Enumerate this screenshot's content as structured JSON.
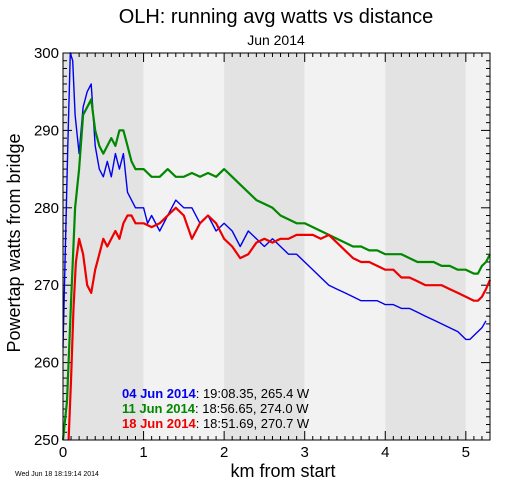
{
  "chart_data": {
    "type": "line",
    "title": "OLH: running avg watts vs distance",
    "subtitle": "Jun 2014",
    "xlabel": "km from start",
    "ylabel": "Powertap watts from bridge",
    "xlim": [
      0,
      5.3
    ],
    "ylim": [
      250,
      300
    ],
    "x_ticks": [
      "0",
      "1",
      "2",
      "3",
      "4",
      "5"
    ],
    "y_ticks": [
      "250",
      "260",
      "270",
      "280",
      "290",
      "300"
    ],
    "background_bands": "alternating grey bands, one per km",
    "stamp": "Wed Jun 18 18:19:14 2014",
    "legend_position": "bottom-left",
    "series": [
      {
        "name": "04 Jun 2014",
        "summary": ": 19:08.35, 265.4 W",
        "color": "#0000ee",
        "points": [
          [
            0.0,
            262
          ],
          [
            0.03,
            275
          ],
          [
            0.06,
            288
          ],
          [
            0.09,
            300
          ],
          [
            0.12,
            299
          ],
          [
            0.15,
            292
          ],
          [
            0.2,
            287
          ],
          [
            0.25,
            293
          ],
          [
            0.3,
            295
          ],
          [
            0.35,
            296
          ],
          [
            0.4,
            288
          ],
          [
            0.45,
            285
          ],
          [
            0.5,
            284
          ],
          [
            0.55,
            286
          ],
          [
            0.6,
            284
          ],
          [
            0.65,
            287
          ],
          [
            0.7,
            285
          ],
          [
            0.75,
            287
          ],
          [
            0.8,
            282
          ],
          [
            0.85,
            281
          ],
          [
            0.9,
            280
          ],
          [
            1.0,
            280
          ],
          [
            1.05,
            278
          ],
          [
            1.1,
            279
          ],
          [
            1.2,
            277
          ],
          [
            1.3,
            279
          ],
          [
            1.4,
            281
          ],
          [
            1.5,
            280
          ],
          [
            1.6,
            280
          ],
          [
            1.7,
            278
          ],
          [
            1.8,
            279
          ],
          [
            1.9,
            277
          ],
          [
            2.0,
            278
          ],
          [
            2.1,
            277
          ],
          [
            2.2,
            275
          ],
          [
            2.3,
            277
          ],
          [
            2.4,
            276
          ],
          [
            2.5,
            275
          ],
          [
            2.6,
            276
          ],
          [
            2.7,
            275
          ],
          [
            2.8,
            274
          ],
          [
            2.9,
            274
          ],
          [
            3.0,
            273
          ],
          [
            3.1,
            272
          ],
          [
            3.2,
            271
          ],
          [
            3.3,
            270
          ],
          [
            3.4,
            269.5
          ],
          [
            3.5,
            269
          ],
          [
            3.6,
            268.5
          ],
          [
            3.7,
            268
          ],
          [
            3.8,
            268
          ],
          [
            3.9,
            268
          ],
          [
            4.0,
            267.5
          ],
          [
            4.1,
            267.5
          ],
          [
            4.2,
            267
          ],
          [
            4.3,
            267
          ],
          [
            4.4,
            266.5
          ],
          [
            4.5,
            266
          ],
          [
            4.6,
            265.5
          ],
          [
            4.7,
            265
          ],
          [
            4.8,
            264.5
          ],
          [
            4.9,
            264
          ],
          [
            5.0,
            263
          ],
          [
            5.05,
            263
          ],
          [
            5.1,
            263.5
          ],
          [
            5.2,
            264.5
          ],
          [
            5.25,
            265.4
          ]
        ]
      },
      {
        "name": "11 Jun 2014",
        "summary": ": 18:56.65, 274.0 W",
        "color": "#008800",
        "points": [
          [
            0.0,
            250
          ],
          [
            0.05,
            255
          ],
          [
            0.1,
            268
          ],
          [
            0.15,
            280
          ],
          [
            0.2,
            285
          ],
          [
            0.25,
            292
          ],
          [
            0.3,
            293
          ],
          [
            0.35,
            294
          ],
          [
            0.4,
            290
          ],
          [
            0.45,
            288
          ],
          [
            0.5,
            287
          ],
          [
            0.55,
            288
          ],
          [
            0.6,
            289
          ],
          [
            0.65,
            288
          ],
          [
            0.7,
            290
          ],
          [
            0.75,
            290
          ],
          [
            0.8,
            288
          ],
          [
            0.85,
            286
          ],
          [
            0.9,
            285
          ],
          [
            1.0,
            285
          ],
          [
            1.1,
            284
          ],
          [
            1.2,
            284
          ],
          [
            1.3,
            285
          ],
          [
            1.4,
            284
          ],
          [
            1.5,
            284
          ],
          [
            1.6,
            284.5
          ],
          [
            1.7,
            284
          ],
          [
            1.8,
            284.5
          ],
          [
            1.9,
            284
          ],
          [
            2.0,
            285
          ],
          [
            2.1,
            284
          ],
          [
            2.2,
            283
          ],
          [
            2.3,
            282
          ],
          [
            2.4,
            281
          ],
          [
            2.5,
            280.5
          ],
          [
            2.6,
            280
          ],
          [
            2.7,
            279
          ],
          [
            2.8,
            278.5
          ],
          [
            2.9,
            278
          ],
          [
            3.0,
            278
          ],
          [
            3.1,
            277.5
          ],
          [
            3.2,
            277
          ],
          [
            3.3,
            276.5
          ],
          [
            3.4,
            276
          ],
          [
            3.5,
            275.5
          ],
          [
            3.6,
            275
          ],
          [
            3.7,
            275
          ],
          [
            3.8,
            274.5
          ],
          [
            3.9,
            274.5
          ],
          [
            4.0,
            274
          ],
          [
            4.1,
            274
          ],
          [
            4.2,
            274
          ],
          [
            4.3,
            273.5
          ],
          [
            4.4,
            273
          ],
          [
            4.5,
            273
          ],
          [
            4.6,
            273
          ],
          [
            4.7,
            272.5
          ],
          [
            4.8,
            272.5
          ],
          [
            4.9,
            272
          ],
          [
            5.0,
            272
          ],
          [
            5.1,
            271.5
          ],
          [
            5.15,
            271.5
          ],
          [
            5.2,
            272.5
          ],
          [
            5.25,
            273
          ],
          [
            5.3,
            274
          ]
        ]
      },
      {
        "name": "18 Jun 2014",
        "summary": ": 18:51.69, 270.7 W",
        "color": "#ee0000",
        "points": [
          [
            0.07,
            250
          ],
          [
            0.1,
            258
          ],
          [
            0.13,
            267
          ],
          [
            0.16,
            273
          ],
          [
            0.2,
            276
          ],
          [
            0.25,
            274
          ],
          [
            0.3,
            270
          ],
          [
            0.35,
            269
          ],
          [
            0.4,
            272
          ],
          [
            0.45,
            274
          ],
          [
            0.5,
            276
          ],
          [
            0.55,
            275
          ],
          [
            0.6,
            276
          ],
          [
            0.65,
            277
          ],
          [
            0.7,
            276
          ],
          [
            0.75,
            278
          ],
          [
            0.8,
            279
          ],
          [
            0.85,
            279
          ],
          [
            0.9,
            278
          ],
          [
            1.0,
            278
          ],
          [
            1.1,
            277.5
          ],
          [
            1.2,
            278
          ],
          [
            1.3,
            279
          ],
          [
            1.4,
            280
          ],
          [
            1.5,
            279
          ],
          [
            1.6,
            276
          ],
          [
            1.7,
            278
          ],
          [
            1.8,
            279
          ],
          [
            1.9,
            278
          ],
          [
            2.0,
            276
          ],
          [
            2.1,
            275
          ],
          [
            2.2,
            273.5
          ],
          [
            2.3,
            274
          ],
          [
            2.4,
            275.5
          ],
          [
            2.5,
            276
          ],
          [
            2.6,
            275.5
          ],
          [
            2.7,
            276
          ],
          [
            2.8,
            276
          ],
          [
            2.9,
            276.5
          ],
          [
            3.0,
            276.5
          ],
          [
            3.1,
            276.5
          ],
          [
            3.2,
            276
          ],
          [
            3.3,
            276.5
          ],
          [
            3.4,
            275.5
          ],
          [
            3.5,
            274.5
          ],
          [
            3.6,
            273.5
          ],
          [
            3.7,
            273
          ],
          [
            3.8,
            273
          ],
          [
            3.9,
            272.5
          ],
          [
            4.0,
            272
          ],
          [
            4.1,
            272
          ],
          [
            4.2,
            271
          ],
          [
            4.3,
            271
          ],
          [
            4.4,
            270.5
          ],
          [
            4.5,
            270
          ],
          [
            4.6,
            270
          ],
          [
            4.7,
            270
          ],
          [
            4.8,
            269.5
          ],
          [
            4.9,
            269
          ],
          [
            5.0,
            268.5
          ],
          [
            5.1,
            268
          ],
          [
            5.15,
            268
          ],
          [
            5.2,
            268.5
          ],
          [
            5.25,
            269.5
          ],
          [
            5.3,
            270.7
          ]
        ]
      }
    ]
  }
}
